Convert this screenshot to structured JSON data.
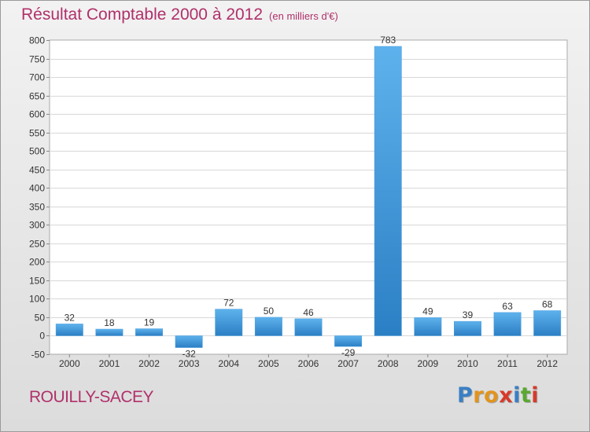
{
  "header": {
    "title": "Résultat Comptable 2000 à 2012",
    "subtitle": "(en milliers d'€)"
  },
  "footer": {
    "commune": "ROUILLY-SACEY",
    "logo": {
      "letters": [
        "P",
        "r",
        "o",
        "x",
        "i",
        "t",
        "i"
      ],
      "colors": [
        "#3a7fc4",
        "#e2941d",
        "#e2941d",
        "#d63a2c",
        "#3a7fc4",
        "#5aa832",
        "#d63a2c"
      ]
    }
  },
  "chart_data": {
    "type": "bar",
    "categories": [
      "2000",
      "2001",
      "2002",
      "2003",
      "2004",
      "2005",
      "2006",
      "2007",
      "2008",
      "2009",
      "2010",
      "2011",
      "2012"
    ],
    "values": [
      32,
      18,
      19,
      -32,
      72,
      50,
      46,
      -29,
      783,
      49,
      39,
      63,
      68
    ],
    "ylim": [
      -50,
      800
    ],
    "yticks": [
      -50,
      0,
      50,
      100,
      150,
      200,
      250,
      300,
      350,
      400,
      450,
      500,
      550,
      600,
      650,
      700,
      750,
      800
    ],
    "grid": true,
    "bar_color": "#4a9fdf",
    "title_color": "#b0306a"
  }
}
